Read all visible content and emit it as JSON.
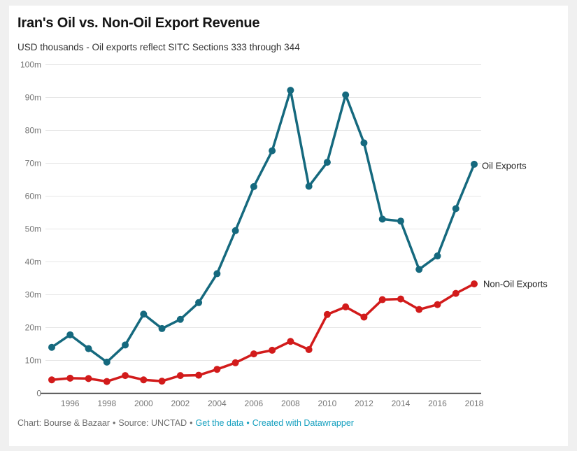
{
  "header": {
    "title": "Iran's Oil vs. Non-Oil Export Revenue",
    "subtitle": "USD thousands - Oil exports reflect SITC Sections 333 through 344"
  },
  "footer": {
    "credit": "Chart: Bourse & Bazaar",
    "separator": "•",
    "source": "Source: UNCTAD",
    "get_data_link": "Get the data",
    "datawrapper_link": "Created with Datawrapper",
    "link_color": "#18a1c0",
    "text_color": "#6e6e6e"
  },
  "chart_data": {
    "type": "line",
    "title": "Iran's Oil vs. Non-Oil Export Revenue",
    "subtitle": "USD thousands - Oil exports reflect SITC Sections 333 through 344",
    "unit": "m",
    "x": [
      1995,
      1996,
      1997,
      1998,
      1999,
      2000,
      2001,
      2002,
      2003,
      2004,
      2005,
      2006,
      2007,
      2008,
      2009,
      2010,
      2011,
      2012,
      2013,
      2014,
      2015,
      2016,
      2017,
      2018
    ],
    "series": [
      {
        "name": "Oil Exports",
        "color": "#15697e",
        "values": [
          14.0,
          17.8,
          13.6,
          9.5,
          14.7,
          24.1,
          19.7,
          22.5,
          27.6,
          36.4,
          49.5,
          62.9,
          73.8,
          92.2,
          63.0,
          70.3,
          90.8,
          76.2,
          53.0,
          52.4,
          37.7,
          41.8,
          56.2,
          69.7
        ]
      },
      {
        "name": "Non-Oil Exports",
        "color": "#d21b1b",
        "values": [
          4.1,
          4.6,
          4.5,
          3.6,
          5.4,
          4.1,
          3.7,
          5.4,
          5.5,
          7.3,
          9.3,
          12.0,
          13.1,
          15.8,
          13.3,
          24.0,
          26.3,
          23.2,
          28.5,
          28.7,
          25.5,
          27.0,
          30.4,
          33.3
        ]
      }
    ],
    "ylim": [
      0,
      100
    ],
    "ytick_values": [
      0,
      10,
      20,
      30,
      40,
      50,
      60,
      70,
      80,
      90,
      100
    ],
    "ytick_labels": [
      "0",
      "10m",
      "20m",
      "30m",
      "40m",
      "50m",
      "60m",
      "70m",
      "80m",
      "90m",
      "100m"
    ],
    "xticks": [
      1996,
      1998,
      2000,
      2002,
      2004,
      2006,
      2008,
      2010,
      2012,
      2014,
      2016,
      2018
    ],
    "grid": true,
    "gridline_color": "#e6e6e6",
    "axis_color": "#3b3b3b",
    "tick_text_color": "#767676",
    "legend_position": "end-of-line"
  }
}
